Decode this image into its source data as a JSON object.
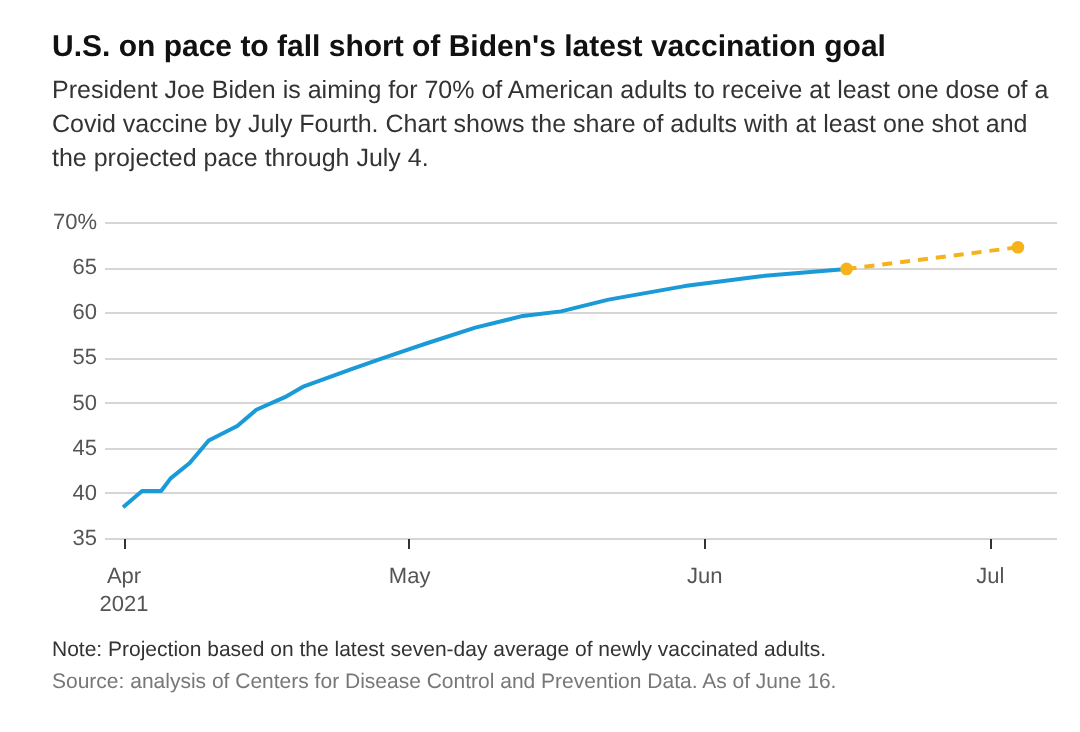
{
  "chart_data": {
    "type": "line",
    "title": "U.S. on pace to fall short of Biden's latest vaccination goal",
    "subtitle": "President Joe Biden is aiming for 70% of American adults to receive at least one dose of a Covid vaccine by July Fourth. Chart shows the share of adults with at least one shot and the projected pace through July 4.",
    "annotations": [
      "Note: Projection based on the latest seven-day average of newly vaccinated adults.",
      "Source: analysis of Centers for Disease Control and Prevention Data. As of June 16."
    ],
    "xlim": [
      "2021-03-30",
      "2021-07-08"
    ],
    "xticks": [
      {
        "value": "2021-04-01",
        "label": "Apr\n2021"
      },
      {
        "value": "2021-05-01",
        "label": "May"
      },
      {
        "value": "2021-06-01",
        "label": "Jun"
      },
      {
        "value": "2021-07-01",
        "label": "Jul"
      }
    ],
    "ylim": [
      35,
      70
    ],
    "yticks": [
      35,
      40,
      45,
      50,
      55,
      60,
      65,
      {
        "value": 70,
        "label": "70%"
      }
    ],
    "grid": "y",
    "series": [
      {
        "color": "#1a9ad6",
        "line_style": "solid",
        "x": [
          "2021-04-01",
          "2021-04-03",
          "2021-04-05",
          "2021-04-06",
          "2021-04-08",
          "2021-04-10",
          "2021-04-13",
          "2021-04-15",
          "2021-04-18",
          "2021-04-20",
          "2021-04-25",
          "2021-04-28",
          "2021-05-01",
          "2021-05-03",
          "2021-05-08",
          "2021-05-13",
          "2021-05-17",
          "2021-05-22",
          "2021-05-30",
          "2021-06-07",
          "2021-06-16"
        ],
        "values": [
          38.4,
          40.2,
          40.2,
          41.6,
          43.3,
          45.8,
          47.4,
          49.2,
          50.6,
          51.8,
          53.7,
          54.8,
          55.9,
          56.6,
          58.3,
          59.6,
          60.1,
          61.4,
          62.9,
          64.0,
          64.8
        ]
      },
      {
        "color": "#f5b21a",
        "line_style": "dashed",
        "marker": "circle",
        "x": [
          "2021-06-16",
          "2021-07-04"
        ],
        "values": [
          64.8,
          67.2
        ]
      }
    ]
  }
}
